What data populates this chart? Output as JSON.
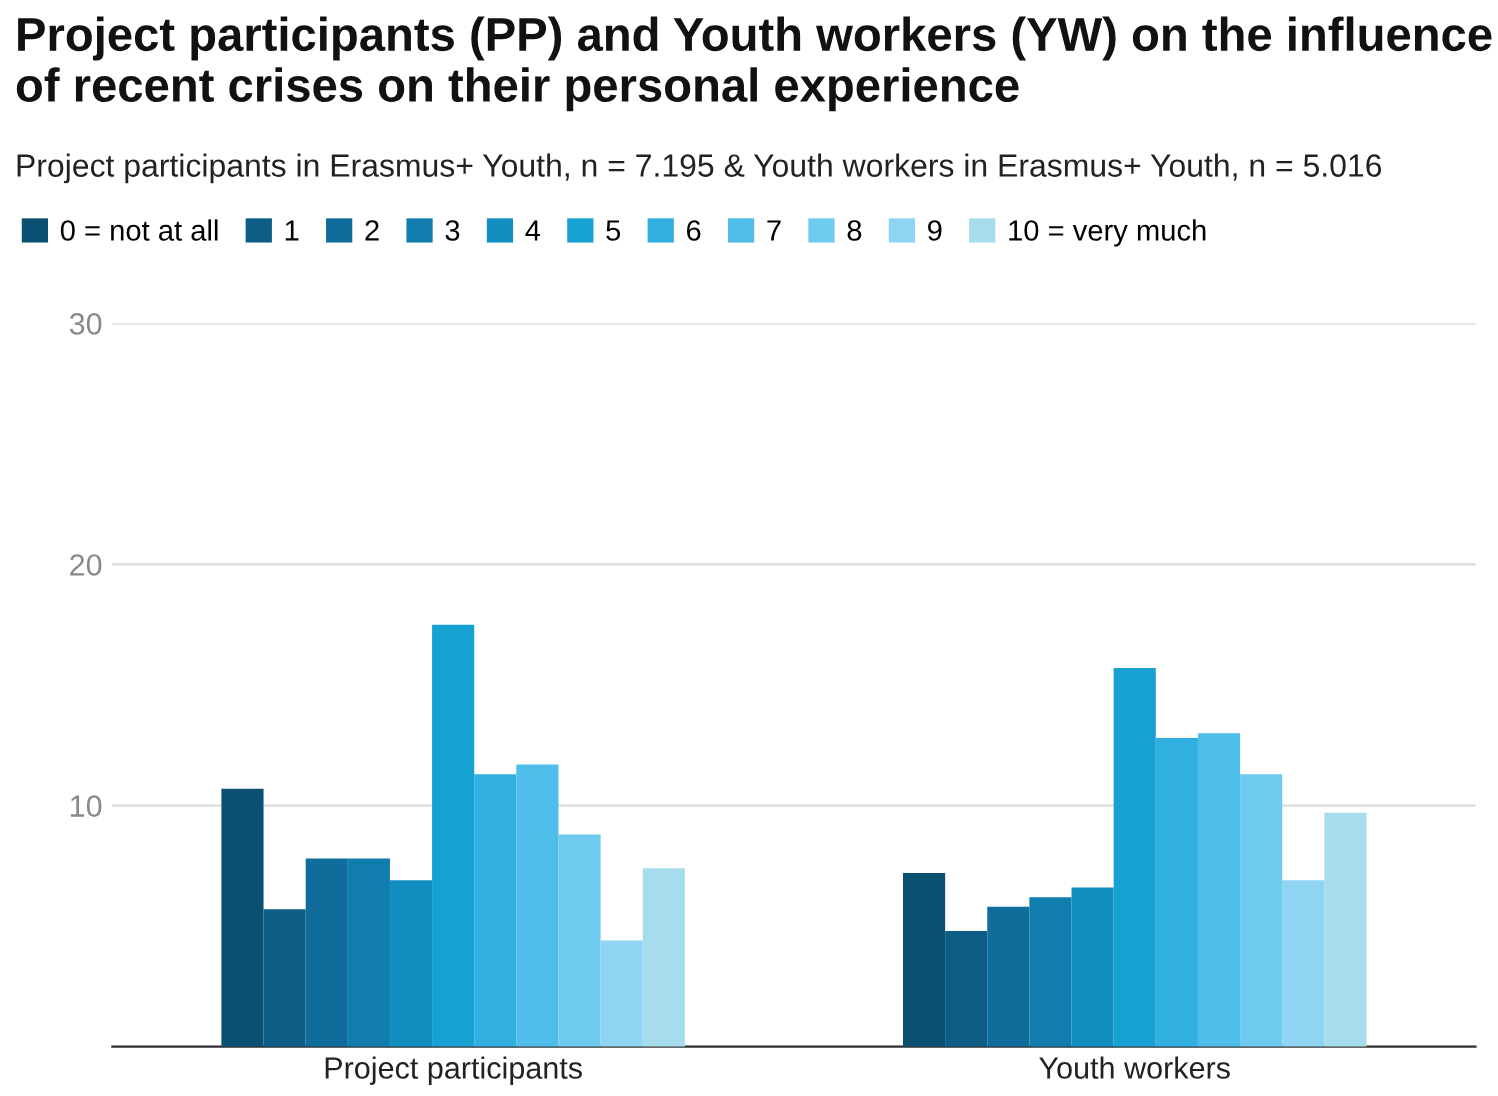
{
  "chart_data": {
    "type": "bar",
    "title": "Project participants (PP) and Youth workers (YW) on the influence of recent crises on their personal experience",
    "subtitle": "Project participants in Erasmus+ Youth, n = 7.195 & Youth workers in Erasmus+ Youth, n = 5.016",
    "categories": [
      "Project participants",
      "Youth workers"
    ],
    "series": [
      {
        "name": "0 = not at all",
        "color": "#0b4f71",
        "values": [
          10.7,
          7.2
        ]
      },
      {
        "name": "1",
        "color": "#0d5d86",
        "values": [
          5.7,
          4.8
        ]
      },
      {
        "name": "2",
        "color": "#0f6c9b",
        "values": [
          7.8,
          5.8
        ]
      },
      {
        "name": "3",
        "color": "#117daf",
        "values": [
          7.8,
          6.2
        ]
      },
      {
        "name": "4",
        "color": "#138ec1",
        "values": [
          6.9,
          6.6
        ]
      },
      {
        "name": "5",
        "color": "#17a1d2",
        "values": [
          17.5,
          15.7
        ]
      },
      {
        "name": "6",
        "color": "#31afe0",
        "values": [
          11.3,
          12.8
        ]
      },
      {
        "name": "7",
        "color": "#4ebde9",
        "values": [
          11.7,
          13.0
        ]
      },
      {
        "name": "8",
        "color": "#6fcaf0",
        "values": [
          8.8,
          11.3
        ]
      },
      {
        "name": "9",
        "color": "#8fd4f2",
        "values": [
          4.4,
          6.9
        ]
      },
      {
        "name": "10 = very much",
        "color": "#a6dcec",
        "values": [
          7.4,
          9.7
        ]
      }
    ],
    "ylim": [
      0,
      30
    ],
    "yticks": [
      {
        "value": 0,
        "label": null
      },
      10,
      20,
      30
    ],
    "grid": "y",
    "legend": "top left"
  }
}
